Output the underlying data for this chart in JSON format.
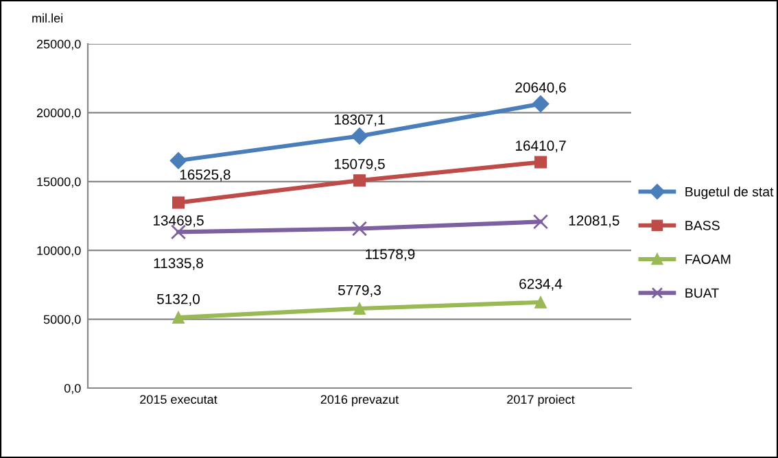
{
  "chart_data": {
    "type": "line",
    "ylabel": "mil.lei",
    "categories": [
      "2015 executat",
      "2016 prevazut",
      "2017 proiect"
    ],
    "series": [
      {
        "name": "Bugetul de stat",
        "color": "#4a7ebb",
        "marker": "diamond",
        "values": [
          16525.8,
          18307.1,
          20640.6
        ],
        "value_labels": [
          "16525,8",
          "18307,1",
          "20640,6"
        ]
      },
      {
        "name": "BASS",
        "color": "#be4b48",
        "marker": "square",
        "values": [
          13469.5,
          15079.5,
          16410.7
        ],
        "value_labels": [
          "13469,5",
          "15079,5",
          "16410,7"
        ]
      },
      {
        "name": "FAOAM",
        "color": "#98b954",
        "marker": "triangle",
        "values": [
          5132.0,
          5779.3,
          6234.4
        ],
        "value_labels": [
          "5132,0",
          "5779,3",
          "6234,4"
        ]
      },
      {
        "name": "BUAT",
        "color": "#7d60a0",
        "marker": "cross",
        "values": [
          11335.8,
          11578.9,
          12081.5
        ],
        "value_labels": [
          "11335,8",
          "11578,9",
          "12081,5"
        ]
      }
    ],
    "ylim": [
      0,
      25000
    ],
    "yticks": [
      {
        "value": 0,
        "label": "0,0"
      },
      {
        "value": 5000,
        "label": "5000,0"
      },
      {
        "value": 10000,
        "label": "10000,0"
      },
      {
        "value": 15000,
        "label": "15000,0"
      },
      {
        "value": 20000,
        "label": "20000,0"
      },
      {
        "value": 25000,
        "label": "25000,0"
      }
    ],
    "grid": "y",
    "legend": "right",
    "line_style": "solid"
  }
}
